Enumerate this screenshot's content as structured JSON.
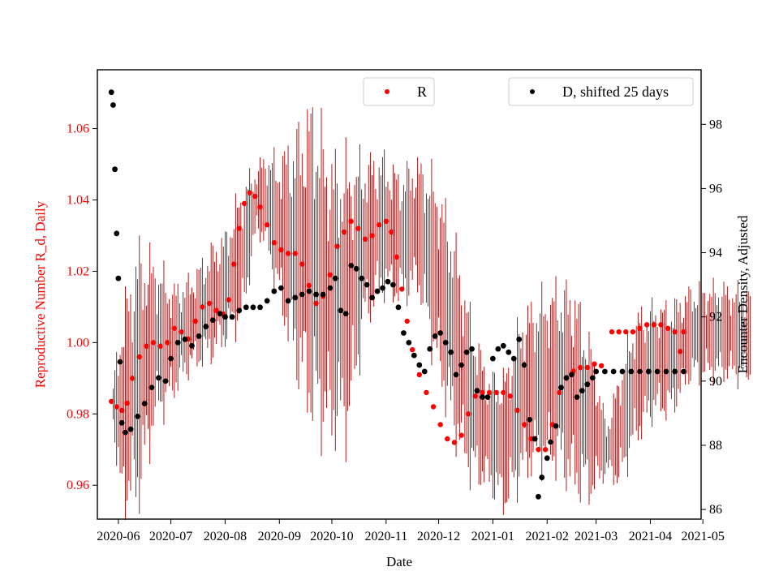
{
  "chart_data": {
    "type": "scatter",
    "xlabel": "Date",
    "ylabel_left": "Reproductive Number R_d, Daily",
    "ylabel_right": "Encounter Density, Adjusted",
    "x_range": [
      "2020-05-20",
      "2021-04-30"
    ],
    "ylim_left": [
      0.9505,
      1.0765
    ],
    "ylim_right": [
      85.7,
      99.7
    ],
    "x_ticks": [
      "2020-06",
      "2020-07",
      "2020-08",
      "2020-09",
      "2020-10",
      "2020-11",
      "2020-12",
      "2021-01",
      "2021-02",
      "2021-03",
      "2021-04",
      "2021-05"
    ],
    "y_ticks_left": [
      "0.96",
      "0.98",
      "1.00",
      "1.02",
      "1.04",
      "1.06"
    ],
    "y_ticks_right": [
      "86",
      "88",
      "90",
      "92",
      "94",
      "96",
      "98"
    ],
    "colors": {
      "R": "#ff0000",
      "R_err": "#aa0000",
      "D": "#000000",
      "left_axis_text": "#ff0000"
    },
    "legend": [
      {
        "label": "R",
        "color": "#ff0000",
        "placement": "top-center"
      },
      {
        "label": "D, shifted 25 days",
        "color": "#000000",
        "placement": "top-right"
      }
    ],
    "series": [
      {
        "name": "R",
        "axis": "left",
        "marker": "dot",
        "has_error_bars": true,
        "error_band_keypoints": [
          [
            0,
            0.9835,
            0.0
          ],
          [
            5,
            0.98,
            0.02
          ],
          [
            15,
            0.99,
            0.028
          ],
          [
            25,
            1.0,
            0.018
          ],
          [
            35,
            1.0,
            0.012
          ],
          [
            45,
            1.005,
            0.01
          ],
          [
            55,
            1.01,
            0.012
          ],
          [
            65,
            1.015,
            0.012
          ],
          [
            75,
            1.025,
            0.015
          ],
          [
            83,
            1.04,
            0.007
          ],
          [
            88,
            1.04,
            0.01
          ],
          [
            95,
            1.032,
            0.015
          ],
          [
            105,
            1.025,
            0.025
          ],
          [
            115,
            1.022,
            0.035
          ],
          [
            125,
            1.012,
            0.03
          ],
          [
            135,
            1.012,
            0.03
          ],
          [
            145,
            1.028,
            0.018
          ],
          [
            155,
            1.033,
            0.015
          ],
          [
            165,
            1.029,
            0.014
          ],
          [
            175,
            1.033,
            0.014
          ],
          [
            185,
            1.02,
            0.02
          ],
          [
            195,
            1.003,
            0.022
          ],
          [
            205,
            0.985,
            0.018
          ],
          [
            215,
            0.975,
            0.012
          ],
          [
            225,
            0.972,
            0.015
          ],
          [
            235,
            0.985,
            0.018
          ],
          [
            245,
            0.989,
            0.018
          ],
          [
            255,
            0.99,
            0.02
          ],
          [
            265,
            0.986,
            0.022
          ],
          [
            275,
            0.977,
            0.016
          ],
          [
            283,
            0.97,
            0.005
          ],
          [
            290,
            0.975,
            0.012
          ],
          [
            300,
            0.99,
            0.014
          ],
          [
            310,
            0.995,
            0.012
          ],
          [
            320,
            0.995,
            0.012
          ],
          [
            330,
            1.002,
            0.01
          ],
          [
            340,
            1.003,
            0.01
          ],
          [
            350,
            1.003,
            0.01
          ],
          [
            360,
            1.002,
            0.01
          ],
          [
            365,
            1.002,
            0.01
          ]
        ],
        "points": [
          [
            "2020-05-28",
            0.9835
          ],
          [
            "2020-05-31",
            0.982
          ],
          [
            "2020-06-03",
            0.981
          ],
          [
            "2020-06-06",
            0.983
          ],
          [
            "2020-06-09",
            0.99
          ],
          [
            "2020-06-13",
            0.996
          ],
          [
            "2020-06-17",
            0.999
          ],
          [
            "2020-06-21",
            1.0
          ],
          [
            "2020-06-25",
            0.999
          ],
          [
            "2020-06-29",
            1.0
          ],
          [
            "2020-07-03",
            1.004
          ],
          [
            "2020-07-07",
            1.003
          ],
          [
            "2020-07-11",
            1.001
          ],
          [
            "2020-07-15",
            1.006
          ],
          [
            "2020-07-19",
            1.01
          ],
          [
            "2020-07-23",
            1.011
          ],
          [
            "2020-07-27",
            1.009
          ],
          [
            "2020-07-31",
            1.008
          ],
          [
            "2020-08-03",
            1.012
          ],
          [
            "2020-08-06",
            1.022
          ],
          [
            "2020-08-09",
            1.032
          ],
          [
            "2020-08-12",
            1.039
          ],
          [
            "2020-08-15",
            1.042
          ],
          [
            "2020-08-18",
            1.041
          ],
          [
            "2020-08-21",
            1.038
          ],
          [
            "2020-08-25",
            1.033
          ],
          [
            "2020-08-29",
            1.028
          ],
          [
            "2020-09-02",
            1.026
          ],
          [
            "2020-09-06",
            1.025
          ],
          [
            "2020-09-10",
            1.025
          ],
          [
            "2020-09-14",
            1.022
          ],
          [
            "2020-09-18",
            1.016
          ],
          [
            "2020-09-22",
            1.011
          ],
          [
            "2020-09-26",
            1.013
          ],
          [
            "2020-09-30",
            1.019
          ],
          [
            "2020-10-04",
            1.027
          ],
          [
            "2020-10-08",
            1.031
          ],
          [
            "2020-10-12",
            1.034
          ],
          [
            "2020-10-16",
            1.032
          ],
          [
            "2020-10-20",
            1.029
          ],
          [
            "2020-10-24",
            1.03
          ],
          [
            "2020-10-28",
            1.033
          ],
          [
            "2020-11-01",
            1.034
          ],
          [
            "2020-11-04",
            1.031
          ],
          [
            "2020-11-07",
            1.024
          ],
          [
            "2020-11-10",
            1.015
          ],
          [
            "2020-11-13",
            1.006
          ],
          [
            "2020-11-16",
            0.998
          ],
          [
            "2020-11-20",
            0.991
          ],
          [
            "2020-11-24",
            0.986
          ],
          [
            "2020-11-28",
            0.982
          ],
          [
            "2020-12-02",
            0.977
          ],
          [
            "2020-12-06",
            0.973
          ],
          [
            "2020-12-10",
            0.972
          ],
          [
            "2020-12-14",
            0.974
          ],
          [
            "2020-12-18",
            0.98
          ],
          [
            "2020-12-22",
            0.985
          ],
          [
            "2020-12-26",
            0.986
          ],
          [
            "2020-12-30",
            0.986
          ],
          [
            "2021-01-03",
            0.986
          ],
          [
            "2021-01-07",
            0.986
          ],
          [
            "2021-01-11",
            0.985
          ],
          [
            "2021-01-15",
            0.981
          ],
          [
            "2021-01-19",
            0.977
          ],
          [
            "2021-01-23",
            0.973
          ],
          [
            "2021-01-27",
            0.97
          ],
          [
            "2021-01-31",
            0.97
          ],
          [
            "2021-02-04",
            0.977
          ],
          [
            "2021-02-08",
            0.986
          ],
          [
            "2021-02-12",
            0.99
          ],
          [
            "2021-02-16",
            0.992
          ],
          [
            "2021-02-20",
            0.993
          ],
          [
            "2021-02-24",
            0.993
          ],
          [
            "2021-02-28",
            0.994
          ],
          [
            "2021-03-04",
            0.9935
          ],
          [
            "2021-03-10",
            1.003
          ],
          [
            "2021-03-14",
            1.003
          ],
          [
            "2021-03-18",
            1.003
          ],
          [
            "2021-03-22",
            1.003
          ],
          [
            "2021-03-26",
            1.004
          ],
          [
            "2021-03-30",
            1.005
          ],
          [
            "2021-04-03",
            1.005
          ],
          [
            "2021-04-07",
            1.005
          ],
          [
            "2021-04-11",
            1.004
          ],
          [
            "2021-04-15",
            1.003
          ],
          [
            "2021-04-18",
            0.9975
          ],
          [
            "2021-04-20",
            1.003
          ]
        ]
      },
      {
        "name": "D, shifted 25 days",
        "axis": "right",
        "marker": "dot",
        "points": [
          [
            "2020-05-28",
            99.0
          ],
          [
            "2020-05-29",
            98.6
          ],
          [
            "2020-05-30",
            96.6
          ],
          [
            "2020-05-31",
            94.6
          ],
          [
            "2020-06-01",
            93.2
          ],
          [
            "2020-06-02",
            90.6
          ],
          [
            "2020-06-03",
            88.7
          ],
          [
            "2020-06-05",
            88.4
          ],
          [
            "2020-06-08",
            88.5
          ],
          [
            "2020-06-12",
            88.9
          ],
          [
            "2020-06-16",
            89.3
          ],
          [
            "2020-06-20",
            89.8
          ],
          [
            "2020-06-24",
            90.1
          ],
          [
            "2020-06-28",
            90.0
          ],
          [
            "2020-07-01",
            90.7
          ],
          [
            "2020-07-05",
            91.2
          ],
          [
            "2020-07-09",
            91.3
          ],
          [
            "2020-07-13",
            91.1
          ],
          [
            "2020-07-17",
            91.4
          ],
          [
            "2020-07-21",
            91.7
          ],
          [
            "2020-07-25",
            91.9
          ],
          [
            "2020-07-29",
            92.1
          ],
          [
            "2020-08-01",
            92.0
          ],
          [
            "2020-08-05",
            92.0
          ],
          [
            "2020-08-09",
            92.2
          ],
          [
            "2020-08-13",
            92.3
          ],
          [
            "2020-08-17",
            92.3
          ],
          [
            "2020-08-21",
            92.3
          ],
          [
            "2020-08-25",
            92.5
          ],
          [
            "2020-08-29",
            92.8
          ],
          [
            "2020-09-02",
            92.9
          ],
          [
            "2020-09-06",
            92.5
          ],
          [
            "2020-09-10",
            92.6
          ],
          [
            "2020-09-14",
            92.7
          ],
          [
            "2020-09-18",
            92.8
          ],
          [
            "2020-09-22",
            92.7
          ],
          [
            "2020-09-26",
            92.7
          ],
          [
            "2020-09-30",
            92.9
          ],
          [
            "2020-10-03",
            93.2
          ],
          [
            "2020-10-06",
            92.2
          ],
          [
            "2020-10-09",
            92.1
          ],
          [
            "2020-10-12",
            93.6
          ],
          [
            "2020-10-15",
            93.5
          ],
          [
            "2020-10-18",
            93.2
          ],
          [
            "2020-10-21",
            93.0
          ],
          [
            "2020-10-24",
            92.6
          ],
          [
            "2020-10-27",
            92.8
          ],
          [
            "2020-10-30",
            92.9
          ],
          [
            "2020-11-02",
            93.1
          ],
          [
            "2020-11-05",
            93.0
          ],
          [
            "2020-11-08",
            92.3
          ],
          [
            "2020-11-11",
            91.5
          ],
          [
            "2020-11-14",
            91.2
          ],
          [
            "2020-11-17",
            90.8
          ],
          [
            "2020-11-20",
            90.5
          ],
          [
            "2020-11-23",
            90.3
          ],
          [
            "2020-11-26",
            91.0
          ],
          [
            "2020-11-29",
            91.4
          ],
          [
            "2020-12-02",
            91.5
          ],
          [
            "2020-12-05",
            91.2
          ],
          [
            "2020-12-08",
            90.9
          ],
          [
            "2020-12-11",
            90.2
          ],
          [
            "2020-12-14",
            90.5
          ],
          [
            "2020-12-17",
            90.9
          ],
          [
            "2020-12-20",
            91.0
          ],
          [
            "2020-12-23",
            89.7
          ],
          [
            "2020-12-26",
            89.5
          ],
          [
            "2020-12-29",
            89.5
          ],
          [
            "2021-01-01",
            90.7
          ],
          [
            "2021-01-04",
            91.0
          ],
          [
            "2021-01-07",
            91.1
          ],
          [
            "2021-01-10",
            90.9
          ],
          [
            "2021-01-13",
            90.7
          ],
          [
            "2021-01-16",
            91.3
          ],
          [
            "2021-01-19",
            90.5
          ],
          [
            "2021-01-22",
            88.8
          ],
          [
            "2021-01-25",
            88.2
          ],
          [
            "2021-01-27",
            86.4
          ],
          [
            "2021-01-29",
            87.0
          ],
          [
            "2021-02-01",
            87.6
          ],
          [
            "2021-02-03",
            88.1
          ],
          [
            "2021-02-06",
            88.6
          ],
          [
            "2021-02-09",
            89.8
          ],
          [
            "2021-02-12",
            90.1
          ],
          [
            "2021-02-15",
            90.2
          ],
          [
            "2021-02-18",
            89.5
          ],
          [
            "2021-02-21",
            89.7
          ],
          [
            "2021-02-24",
            89.9
          ],
          [
            "2021-02-27",
            90.1
          ],
          [
            "2021-03-01",
            90.3
          ],
          [
            "2021-03-06",
            90.3
          ],
          [
            "2021-03-11",
            90.3
          ],
          [
            "2021-03-16",
            90.3
          ],
          [
            "2021-03-21",
            90.3
          ],
          [
            "2021-03-26",
            90.3
          ],
          [
            "2021-03-31",
            90.3
          ],
          [
            "2021-04-05",
            90.3
          ],
          [
            "2021-04-10",
            90.3
          ],
          [
            "2021-04-15",
            90.3
          ],
          [
            "2021-04-20",
            90.3
          ]
        ]
      }
    ]
  }
}
